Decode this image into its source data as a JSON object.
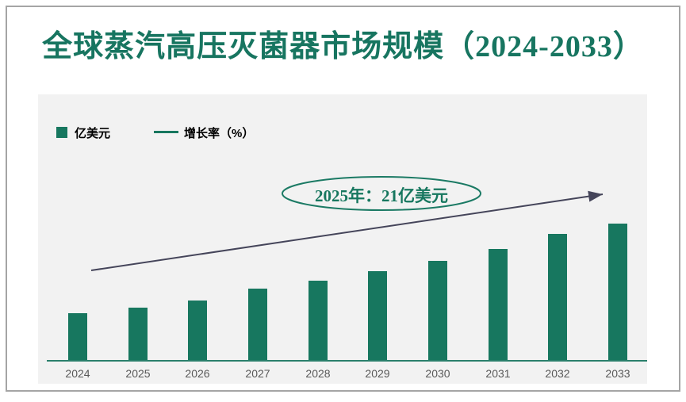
{
  "chart_data": {
    "type": "bar",
    "title": "全球蒸汽高压灭菌器市场规模（2024-2033）",
    "categories": [
      "2024",
      "2025",
      "2026",
      "2027",
      "2028",
      "2029",
      "2030",
      "2031",
      "2032",
      "2033"
    ],
    "series": [
      {
        "name": "亿美元",
        "type": "bar",
        "color": "#17775f",
        "values": [
          19,
          21,
          24,
          29,
          32,
          36,
          40,
          45,
          51,
          55
        ]
      },
      {
        "name": "增长率（%）",
        "type": "line",
        "color": "#45455a",
        "representation": "straight rising trend arrow, no plotted data points or labels"
      }
    ],
    "annotations": [
      {
        "text": "2025年：21亿美元",
        "target_year": "2025",
        "value": 21,
        "unit": "亿美元"
      }
    ],
    "xlabel": "",
    "ylabel": "",
    "ylim": [
      0,
      60
    ],
    "grid": false,
    "legend_position": "top-left"
  },
  "colors": {
    "accent_green": "#17775f",
    "title_text": "#177560",
    "axis_line": "#2a806c",
    "trend_arrow": "#45455a",
    "panel_background": "#f2f2f2",
    "tick_label": "#595959",
    "legend_text": "#000000",
    "ellipse_stroke": "#1b7a64",
    "frame_border": "#a5a5a5"
  }
}
